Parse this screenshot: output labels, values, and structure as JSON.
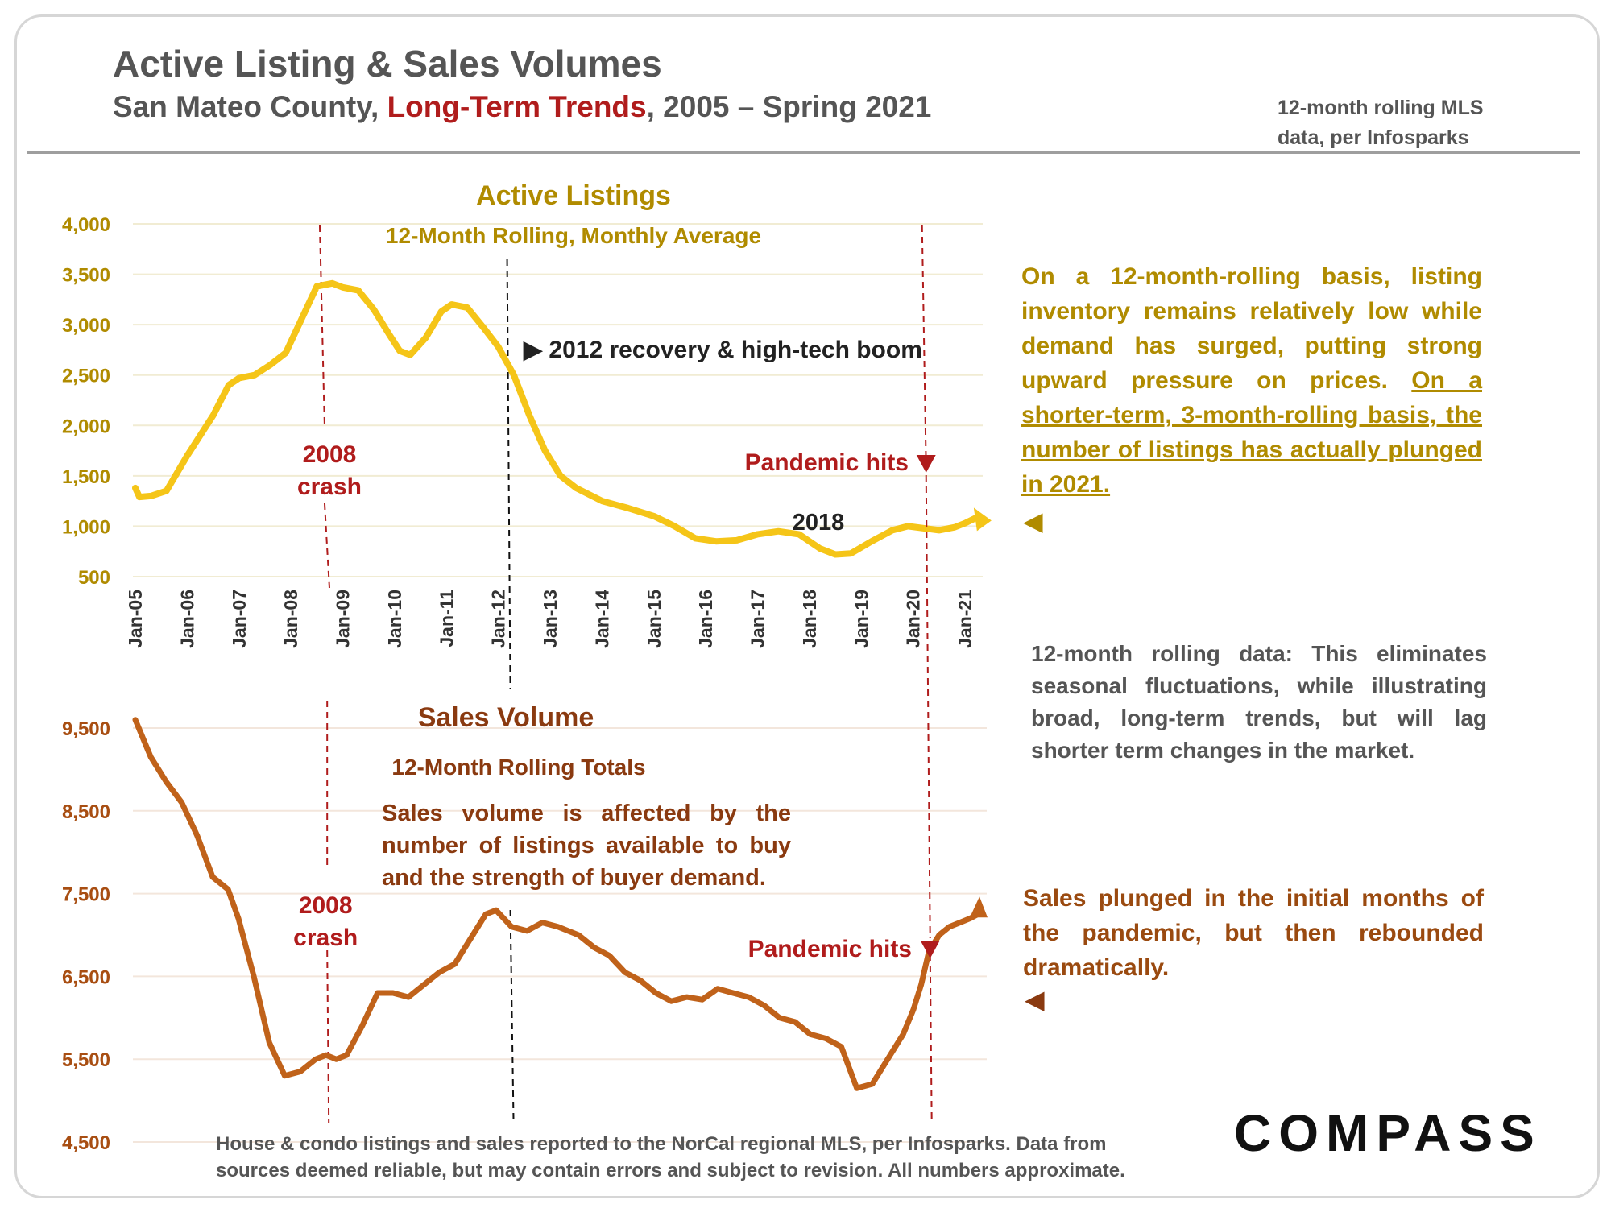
{
  "header": {
    "title": "Active Listing & Sales Volumes",
    "subtitle_pre": "San Mateo County, ",
    "subtitle_red": "Long-Term Trends",
    "subtitle_post": ", 2005 – Spring 2021",
    "source_note": "12-month rolling MLS data, per Infosparks"
  },
  "chart_data": [
    {
      "type": "line",
      "title": "Active Listings",
      "subtitle": "12-Month Rolling, Monthly Average",
      "color": "#f5c518",
      "ylim": [
        500,
        4000
      ],
      "yticks": [
        "4,000",
        "3,500",
        "3,000",
        "2,500",
        "2,000",
        "1,500",
        "1,000",
        "500"
      ],
      "xticks": [
        "Jan-05",
        "Jan-06",
        "Jan-07",
        "Jan-08",
        "Jan-09",
        "Jan-10",
        "Jan-11",
        "Jan-12",
        "Jan-13",
        "Jan-14",
        "Jan-15",
        "Jan-16",
        "Jan-17",
        "Jan-18",
        "Jan-19",
        "Jan-20",
        "Jan-21"
      ],
      "series": [
        {
          "x": [
            2005.0,
            2005.08,
            2005.3,
            2005.6,
            2006.0,
            2006.5,
            2006.8,
            2007.0,
            2007.3,
            2007.6,
            2007.9,
            2008.2,
            2008.5,
            2008.8,
            2009.0,
            2009.3,
            2009.6,
            2009.9,
            2010.1,
            2010.3,
            2010.6,
            2010.9,
            2011.1,
            2011.4,
            2011.7,
            2012.0,
            2012.3,
            2012.6,
            2012.9,
            2013.2,
            2013.5,
            2014.0,
            2014.5,
            2015.0,
            2015.4,
            2015.8,
            2016.2,
            2016.6,
            2017.0,
            2017.4,
            2017.8,
            2018.2,
            2018.5,
            2018.8,
            2019.2,
            2019.6,
            2019.9,
            2020.2,
            2020.5,
            2020.8,
            2021.0,
            2021.2
          ],
          "y": [
            1380,
            1290,
            1300,
            1350,
            1700,
            2100,
            2400,
            2470,
            2500,
            2600,
            2720,
            3050,
            3380,
            3410,
            3370,
            3340,
            3150,
            2900,
            2740,
            2700,
            2870,
            3130,
            3200,
            3170,
            2980,
            2780,
            2500,
            2100,
            1750,
            1500,
            1380,
            1250,
            1180,
            1100,
            1000,
            880,
            850,
            860,
            920,
            950,
            920,
            780,
            720,
            730,
            850,
            960,
            1000,
            980,
            960,
            990,
            1030,
            1080
          ]
        }
      ],
      "annotations": [
        {
          "label_line1": "2008",
          "label_line2": "crash",
          "x": 2008.65,
          "color": "#b01c1c"
        },
        {
          "label": "▶ 2012 recovery & high-tech boom",
          "x": 2012.17,
          "color": "#222222"
        },
        {
          "label": "Pandemic hits",
          "x": 2020.25,
          "color": "#b01c1c"
        },
        {
          "label": "2018",
          "color": "#222222"
        }
      ]
    },
    {
      "type": "line",
      "title": "Sales Volume",
      "subtitle": "12-Month Rolling Totals",
      "description": "Sales volume is affected by the number of listings available to buy and the strength of buyer demand.",
      "color": "#c0621a",
      "ylim": [
        4500,
        10000
      ],
      "yticks": [
        "9,500",
        "8,500",
        "7,500",
        "6,500",
        "5,500",
        "4,500"
      ],
      "series": [
        {
          "x": [
            2005.0,
            2005.1,
            2005.3,
            2005.6,
            2005.9,
            2006.2,
            2006.5,
            2006.8,
            2007.0,
            2007.3,
            2007.6,
            2007.9,
            2008.2,
            2008.5,
            2008.7,
            2008.9,
            2009.1,
            2009.4,
            2009.7,
            2010.0,
            2010.3,
            2010.6,
            2010.9,
            2011.2,
            2011.5,
            2011.8,
            2012.0,
            2012.3,
            2012.6,
            2012.9,
            2013.2,
            2013.6,
            2013.9,
            2014.2,
            2014.5,
            2014.8,
            2015.1,
            2015.4,
            2015.7,
            2016.0,
            2016.3,
            2016.6,
            2016.9,
            2017.2,
            2017.5,
            2017.8,
            2018.1,
            2018.4,
            2018.7,
            2019.0,
            2019.3,
            2019.6,
            2019.9,
            2020.1,
            2020.25,
            2020.4,
            2020.6,
            2020.8,
            2021.0,
            2021.2,
            2021.35
          ],
          "y": [
            9600,
            9450,
            9150,
            8850,
            8600,
            8200,
            7700,
            7550,
            7200,
            6500,
            5700,
            5300,
            5350,
            5500,
            5550,
            5500,
            5550,
            5900,
            6300,
            6300,
            6250,
            6400,
            6550,
            6650,
            6950,
            7250,
            7300,
            7100,
            7050,
            7150,
            7100,
            7000,
            6850,
            6750,
            6550,
            6450,
            6300,
            6200,
            6250,
            6220,
            6350,
            6300,
            6250,
            6150,
            6000,
            5950,
            5800,
            5750,
            5650,
            5150,
            5200,
            5500,
            5800,
            6100,
            6400,
            6800,
            7000,
            7100,
            7150,
            7200,
            7250
          ]
        }
      ],
      "annotations": [
        {
          "label_line1": "2008",
          "label_line2": "crash",
          "x": 2008.7,
          "color": "#b01c1c"
        },
        {
          "label": "Pandemic hits",
          "x": 2020.25,
          "color": "#b01c1c"
        }
      ]
    }
  ],
  "notes": {
    "note1_plain": "On a 12-month-rolling basis, listing inventory remains relatively low while demand has surged, putting strong upward pressure on prices. ",
    "note1_underline": "On a shorter-term, 3-month-rolling basis, the number of listings has actually plunged in 2021.",
    "note1_arrow": "◀",
    "note2": "12-month rolling data: This eliminates seasonal fluctuations, while illustrating broad, long-term trends, but will lag shorter term changes in the market.",
    "note3": "Sales plunged in the initial months of the pandemic, but then rebounded dramatically.",
    "note3_arrow": "◀"
  },
  "footer": "House & condo listings and sales reported to the NorCal regional MLS, per Infosparks. Data from sources deemed reliable, but may contain errors and subject to revision. All numbers approximate.",
  "logo": "COMPASS"
}
